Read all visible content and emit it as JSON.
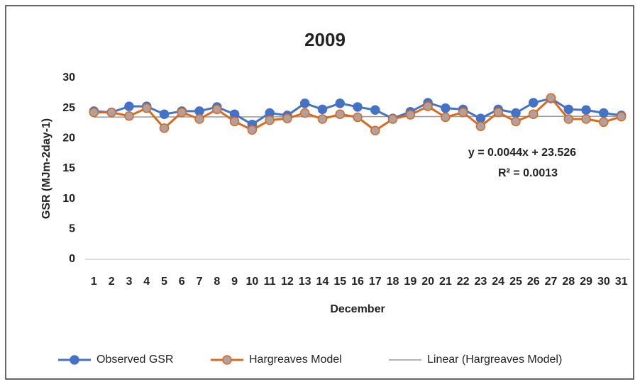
{
  "chart_data": {
    "type": "line",
    "title": "2009",
    "x_label": "December",
    "y_label": "GSR (MJm-2day-1)",
    "categories": [
      "1",
      "2",
      "3",
      "4",
      "5",
      "6",
      "7",
      "8",
      "9",
      "10",
      "11",
      "12",
      "13",
      "14",
      "15",
      "16",
      "17",
      "18",
      "19",
      "20",
      "21",
      "22",
      "23",
      "24",
      "25",
      "26",
      "27",
      "28",
      "29",
      "30",
      "31"
    ],
    "series": [
      {
        "name": "Observed GSR",
        "color": "#4472c4",
        "marker_fill": "#4472c4",
        "values": [
          24.5,
          24.3,
          25.3,
          25.3,
          24.0,
          24.5,
          24.5,
          25.2,
          24.0,
          22.3,
          24.2,
          23.8,
          25.8,
          24.8,
          25.8,
          25.2,
          24.7,
          23.3,
          24.4,
          25.9,
          25.0,
          24.8,
          23.3,
          24.8,
          24.2,
          25.9,
          26.6,
          24.8,
          24.7,
          24.2,
          23.8
        ]
      },
      {
        "name": "Hargreaves Model",
        "color": "#d9691e",
        "marker_fill": "#b0a0a0",
        "values": [
          24.3,
          24.3,
          23.7,
          25.0,
          21.7,
          24.3,
          23.2,
          24.8,
          22.8,
          21.4,
          23.0,
          23.3,
          24.2,
          23.2,
          24.0,
          23.5,
          21.3,
          23.2,
          23.9,
          25.3,
          23.5,
          24.3,
          22.0,
          24.3,
          22.8,
          24.0,
          26.7,
          23.2,
          23.2,
          22.7,
          23.6
        ]
      }
    ],
    "trendline": {
      "name": "Linear (Hargreaves Model)",
      "color": "#999999",
      "slope": 0.0044,
      "intercept": 23.526,
      "equation": "y = 0.0044x + 23.526",
      "r_squared": "R² = 0.0013"
    },
    "ylim": [
      0,
      30
    ],
    "yticks": [
      0,
      5,
      10,
      15,
      20,
      25,
      30
    ],
    "grid": false,
    "legend": "bottom"
  }
}
